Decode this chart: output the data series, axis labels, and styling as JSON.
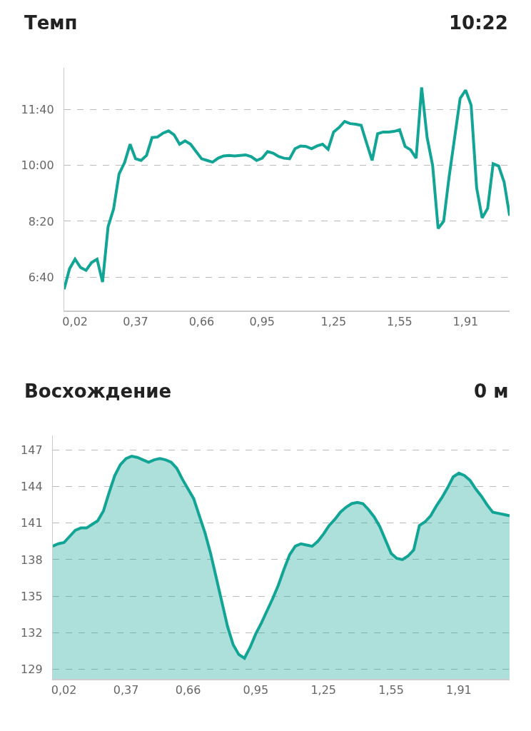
{
  "chart_data": [
    {
      "type": "line",
      "title": "Темп",
      "annotations": [
        "10:22"
      ],
      "color": "#12a596",
      "grid": "y",
      "categories": [
        null,
        null,
        "0,02",
        null,
        null,
        null,
        null,
        null,
        null,
        null,
        null,
        null,
        null,
        "0,37",
        null,
        null,
        null,
        null,
        null,
        null,
        null,
        null,
        null,
        null,
        null,
        "0,66",
        null,
        null,
        null,
        null,
        null,
        null,
        null,
        null,
        null,
        null,
        "0,95",
        null,
        null,
        null,
        null,
        null,
        null,
        null,
        null,
        null,
        null,
        null,
        null,
        "1,25",
        null,
        null,
        null,
        null,
        null,
        null,
        null,
        null,
        null,
        null,
        null,
        "1,55",
        null,
        null,
        null,
        null,
        null,
        null,
        null,
        null,
        null,
        null,
        null,
        "1,91",
        null,
        null,
        null,
        null,
        null,
        null,
        null,
        null
      ],
      "values": [
        378,
        415,
        432,
        417,
        412,
        426,
        432,
        391,
        490,
        522,
        585,
        605,
        638,
        612,
        609,
        618,
        650,
        651,
        658,
        662,
        655,
        638,
        644,
        638,
        625,
        612,
        609,
        606,
        613,
        617,
        618,
        617,
        618,
        619,
        616,
        609,
        613,
        625,
        622,
        616,
        613,
        612,
        630,
        635,
        634,
        630,
        635,
        638,
        629,
        660,
        668,
        679,
        675,
        674,
        672,
        640,
        609,
        657,
        660,
        660,
        661,
        664,
        634,
        628,
        613,
        740,
        650,
        600,
        487,
        500,
        580,
        650,
        720,
        735,
        708,
        560,
        506,
        523,
        603,
        599,
        570,
        510
      ],
      "ylim": [
        340,
        775
      ],
      "yticks": [
        {
          "value": 400,
          "label": "6:40"
        },
        {
          "value": 500,
          "label": "8:20"
        },
        {
          "value": 600,
          "label": "10:00"
        },
        {
          "value": 700,
          "label": "11:40"
        }
      ]
    },
    {
      "type": "area",
      "title": "Восхождение",
      "annotations": [
        "0 м"
      ],
      "color": "#12a596",
      "grid": "y",
      "categories": [
        null,
        null,
        "0,02",
        null,
        null,
        null,
        null,
        null,
        null,
        null,
        null,
        null,
        null,
        "0,37",
        null,
        null,
        null,
        null,
        null,
        null,
        null,
        null,
        null,
        null,
        "0,66",
        null,
        null,
        null,
        null,
        null,
        null,
        null,
        null,
        null,
        null,
        null,
        "0,95",
        null,
        null,
        null,
        null,
        null,
        null,
        null,
        null,
        null,
        null,
        null,
        "1,25",
        null,
        null,
        null,
        null,
        null,
        null,
        null,
        null,
        null,
        null,
        null,
        "1,55",
        null,
        null,
        null,
        null,
        null,
        null,
        null,
        null,
        null,
        null,
        null,
        "1,91",
        null,
        null,
        null,
        null,
        null,
        null,
        null,
        null,
        null
      ],
      "values": [
        139.1,
        139.3,
        139.4,
        139.9,
        140.4,
        140.6,
        140.6,
        140.9,
        141.2,
        142.0,
        143.5,
        144.9,
        145.8,
        146.3,
        146.5,
        146.4,
        146.2,
        146.0,
        146.2,
        146.3,
        146.2,
        146.0,
        145.5,
        144.6,
        143.8,
        143.0,
        141.6,
        140.2,
        138.5,
        136.5,
        134.5,
        132.5,
        131.0,
        130.2,
        129.9,
        130.8,
        131.9,
        132.8,
        133.8,
        134.8,
        135.9,
        137.2,
        138.4,
        139.1,
        139.3,
        139.2,
        139.1,
        139.5,
        140.1,
        140.8,
        141.3,
        141.9,
        142.3,
        142.6,
        142.7,
        142.6,
        142.1,
        141.5,
        140.7,
        139.6,
        138.5,
        138.1,
        138.0,
        138.3,
        138.8,
        140.8,
        141.1,
        141.6,
        142.4,
        143.1,
        143.9,
        144.8,
        145.1,
        144.9,
        144.5,
        143.8,
        143.2,
        142.5,
        141.9,
        141.8,
        141.7,
        141.6
      ],
      "ylim": [
        128.2,
        148.2
      ],
      "yticks": [
        129,
        132,
        135,
        138,
        141,
        144,
        147
      ]
    }
  ]
}
